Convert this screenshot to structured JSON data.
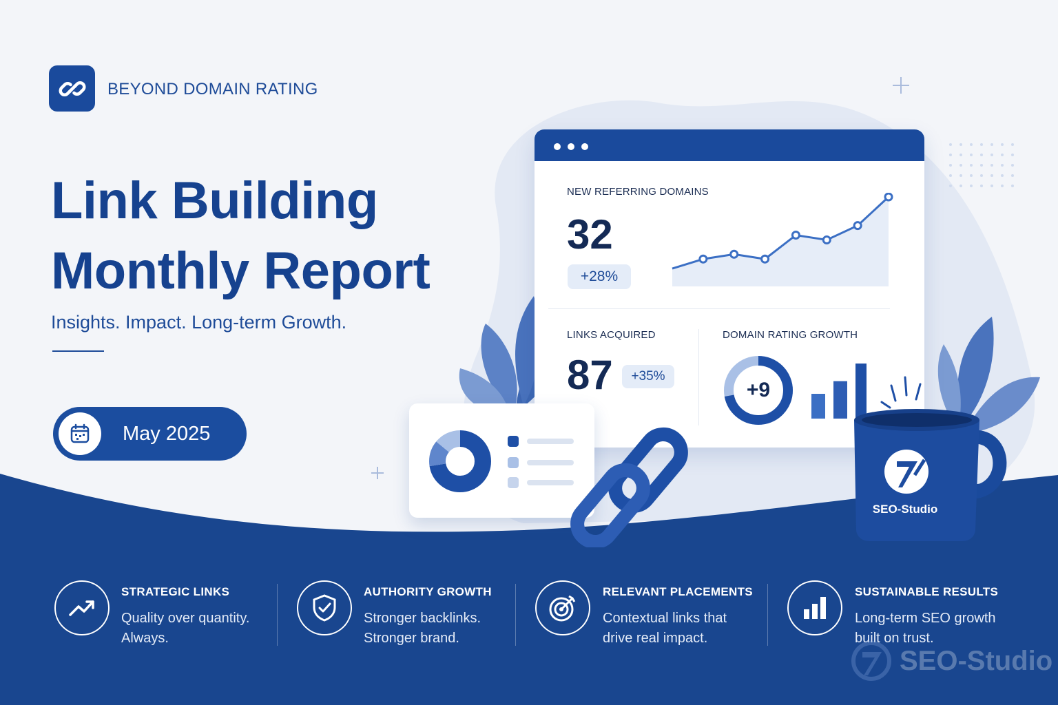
{
  "brand": {
    "name": "BEYOND DOMAIN RATING",
    "icon": "chain-link-icon"
  },
  "hero": {
    "title_line1": "Link Building",
    "title_line2": "Monthly Report",
    "tagline": "Insights. Impact. Long-term Growth.",
    "date": "May 2025"
  },
  "dashboard": {
    "new_referring": {
      "label": "NEW REFERRING DOMAINS",
      "value": "32",
      "change": "+28%"
    },
    "trend_values": [
      2,
      4,
      5,
      4,
      9,
      8,
      11,
      17
    ],
    "links": {
      "label": "LINKS ACQUIRED",
      "value": "87",
      "change": "+35%"
    },
    "dr": {
      "label": "DOMAIN RATING GROWTH",
      "value": "+9",
      "ring_fraction": 0.72,
      "bars": [
        0.45,
        0.68,
        1.0
      ]
    }
  },
  "mug": {
    "label": "SEO-Studio"
  },
  "features": [
    {
      "title": "STRATEGIC LINKS",
      "line1": "Quality over quantity.",
      "line2": "Always.",
      "icon": "trend-up-icon"
    },
    {
      "title": "AUTHORITY GROWTH",
      "line1": "Stronger backlinks.",
      "line2": "Stronger brand.",
      "icon": "shield-check-icon"
    },
    {
      "title": "RELEVANT PLACEMENTS",
      "line1": "Contextual links that",
      "line2": "drive real impact.",
      "icon": "target-icon"
    },
    {
      "title": "SUSTAINABLE RESULTS",
      "line1": "Long-term SEO growth",
      "line2": "built on trust.",
      "icon": "bar-chart-icon"
    }
  ],
  "watermark": {
    "text": "SEO-Studio"
  },
  "colors": {
    "primary": "#1a4a9c",
    "navy": "#19468f",
    "light": "#e4ecf8"
  }
}
